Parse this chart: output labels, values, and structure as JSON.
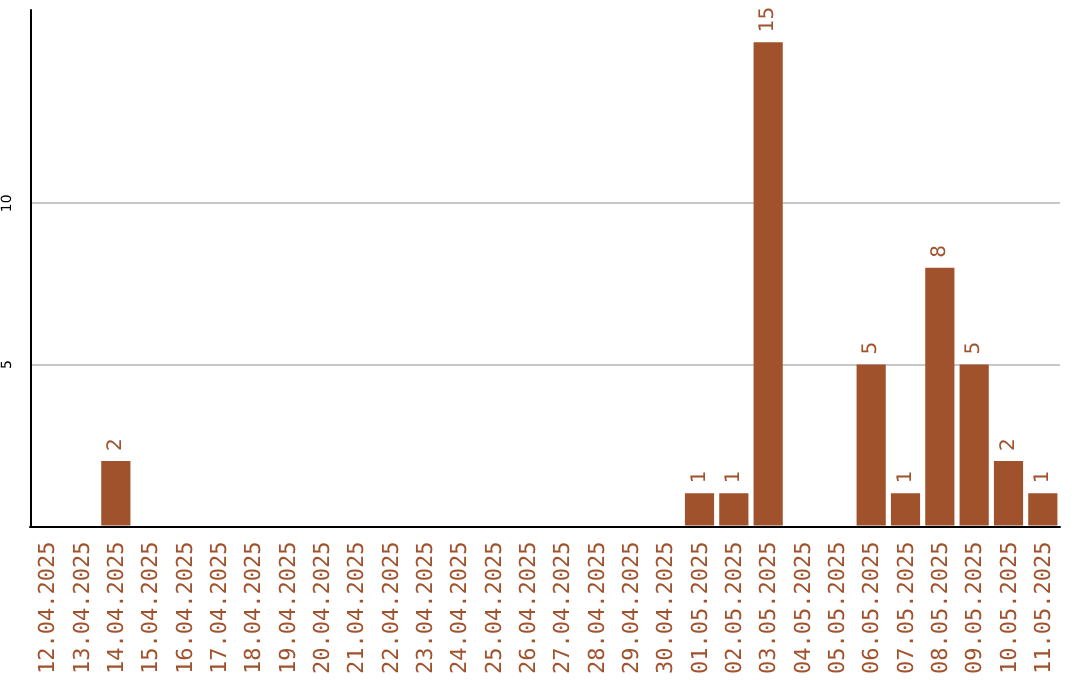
{
  "chart_data": {
    "type": "bar",
    "categories": [
      "12.04.2025",
      "13.04.2025",
      "14.04.2025",
      "15.04.2025",
      "16.04.2025",
      "17.04.2025",
      "18.04.2025",
      "19.04.2025",
      "20.04.2025",
      "21.04.2025",
      "22.04.2025",
      "23.04.2025",
      "24.04.2025",
      "25.04.2025",
      "26.04.2025",
      "27.04.2025",
      "28.04.2025",
      "29.04.2025",
      "30.04.2025",
      "01.05.2025",
      "02.05.2025",
      "03.05.2025",
      "04.05.2025",
      "05.05.2025",
      "06.05.2025",
      "07.05.2025",
      "08.05.2025",
      "09.05.2025",
      "10.05.2025",
      "11.05.2025"
    ],
    "values": [
      0,
      0,
      2,
      0,
      0,
      0,
      0,
      0,
      0,
      0,
      0,
      0,
      0,
      0,
      0,
      0,
      0,
      0,
      0,
      1,
      1,
      15,
      0,
      0,
      5,
      1,
      8,
      5,
      2,
      1
    ],
    "value_labels": [
      null,
      null,
      "2",
      null,
      null,
      null,
      null,
      null,
      null,
      null,
      null,
      null,
      null,
      null,
      null,
      null,
      null,
      null,
      null,
      "1",
      "1",
      "15",
      null,
      null,
      "5",
      "1",
      "8",
      "5",
      "2",
      "1"
    ],
    "color": "#a0522d",
    "ylim": [
      0,
      16
    ],
    "yticks": [
      5,
      10
    ],
    "grid": "y"
  }
}
